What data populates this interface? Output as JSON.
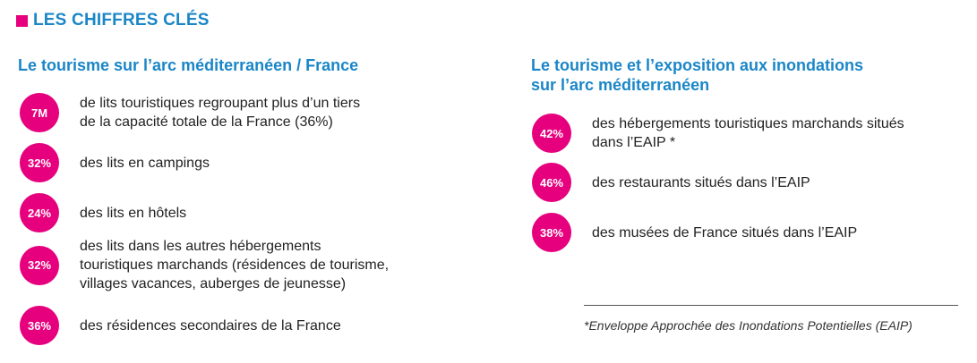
{
  "header": {
    "title": "LES CHIFFRES CLÉS"
  },
  "left": {
    "title": "Le tourisme sur l’arc méditerranéen / France",
    "stats": [
      {
        "value": "7M",
        "lines": [
          "de lits touristiques regroupant plus d’un tiers",
          "de la capacité totale de la France (36%)"
        ]
      },
      {
        "value": "32%",
        "lines": [
          "des lits en campings"
        ]
      },
      {
        "value": "24%",
        "lines": [
          "des lits en hôtels"
        ]
      },
      {
        "value": "32%",
        "lines": [
          "des lits dans les autres hébergements",
          "touristiques marchands (résidences de tourisme,",
          "villages vacances, auberges de jeunesse)"
        ]
      },
      {
        "value": "36%",
        "lines": [
          "des résidences secondaires de la France"
        ]
      }
    ]
  },
  "right": {
    "title_lines": [
      "Le tourisme et l’exposition aux inondations",
      "sur l’arc méditerranéen"
    ],
    "stats": [
      {
        "value": "42%",
        "lines": [
          "des hébergements touristiques marchands situés",
          "dans l’EAIP *"
        ]
      },
      {
        "value": "46%",
        "lines": [
          "des restaurants  situés dans l’EAIP"
        ]
      },
      {
        "value": "38%",
        "lines": [
          "des musées de France  situés dans l’EAIP"
        ]
      }
    ]
  },
  "footnote": "*Enveloppe Approchée des Inondations Potentielles (EAIP)",
  "colors": {
    "accent": "#e6007e",
    "title": "#1a86c7"
  }
}
